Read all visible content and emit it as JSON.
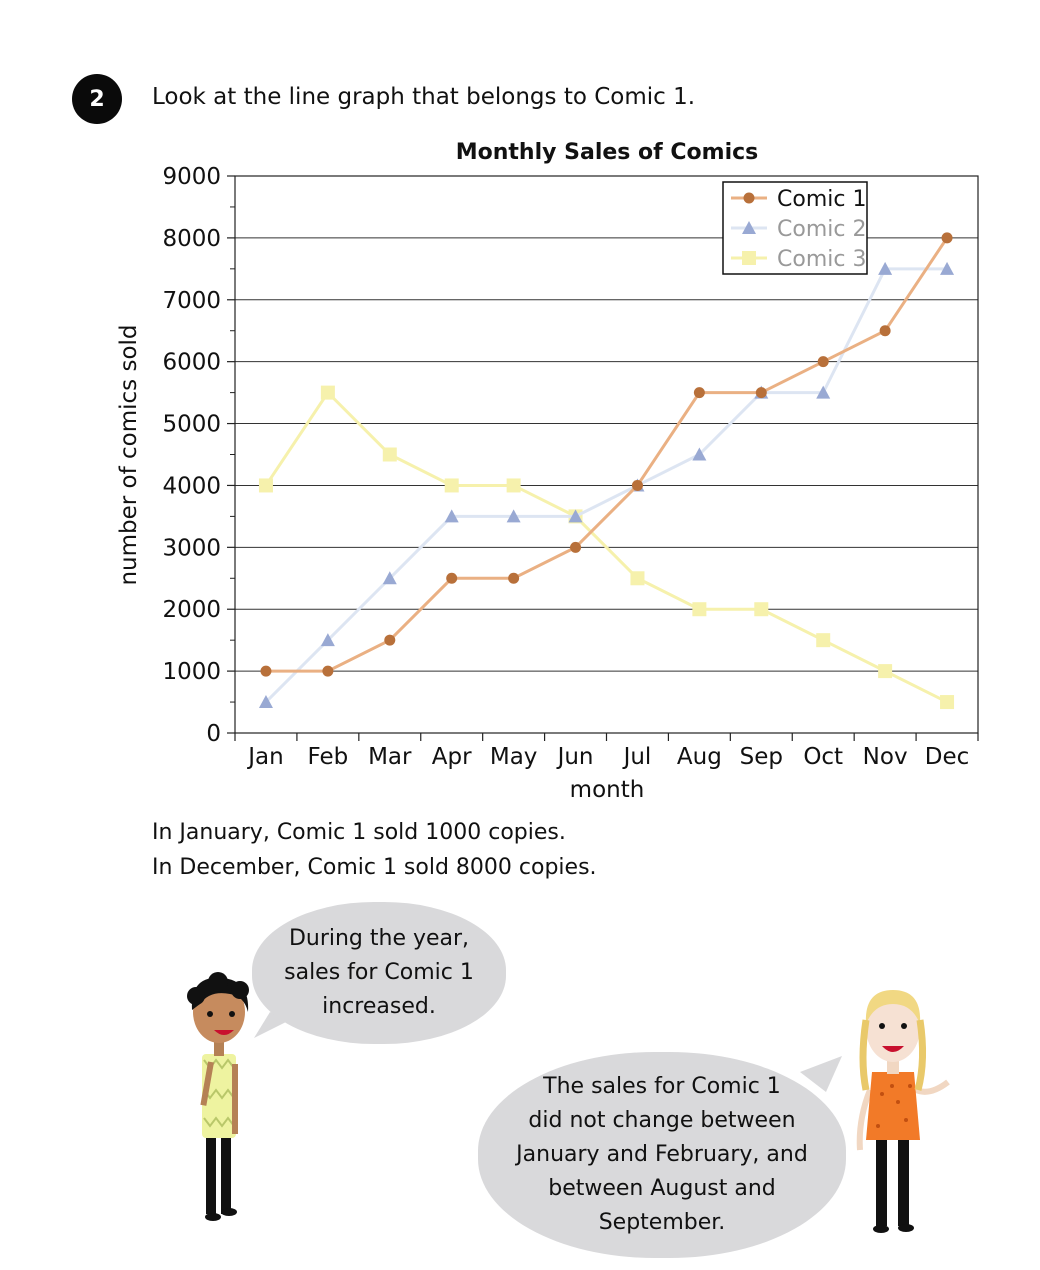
{
  "question": {
    "number": "2",
    "prompt": "Look at the line graph that belongs to Comic 1."
  },
  "chart_data": {
    "type": "line",
    "title": "Monthly Sales of Comics",
    "xlabel": "month",
    "ylabel": "number of comics sold",
    "ylim": [
      0,
      9000
    ],
    "yticks": [
      0,
      1000,
      2000,
      3000,
      4000,
      5000,
      6000,
      7000,
      8000,
      9000
    ],
    "categories": [
      "Jan",
      "Feb",
      "Mar",
      "Apr",
      "May",
      "Jun",
      "Jul",
      "Aug",
      "Sep",
      "Oct",
      "Nov",
      "Dec"
    ],
    "grid": true,
    "legend_position": "top-right",
    "series": [
      {
        "name": "Comic 1",
        "marker": "circle",
        "color": "#eab083",
        "marker_color": "#b8703a",
        "values": [
          1000,
          1000,
          1500,
          2500,
          2500,
          3000,
          4000,
          5500,
          5500,
          6000,
          6500,
          8000
        ]
      },
      {
        "name": "Comic 2",
        "marker": "triangle",
        "color": "#dde5f2",
        "marker_color": "#99a9d3",
        "values": [
          500,
          1500,
          2500,
          3500,
          3500,
          3500,
          4000,
          4500,
          5500,
          5500,
          7500,
          7500
        ]
      },
      {
        "name": "Comic 3",
        "marker": "square",
        "color": "#f6f1ac",
        "marker_color": "#f6f1ac",
        "values": [
          4000,
          5500,
          4500,
          4000,
          4000,
          3500,
          2500,
          2000,
          2000,
          1500,
          1000,
          500
        ]
      }
    ]
  },
  "statements": [
    "In January, Comic 1 sold 1000 copies.",
    "In December, Comic 1 sold 8000 copies."
  ],
  "speech": {
    "boy": [
      "During the year,",
      "sales for Comic 1",
      "increased."
    ],
    "girl": [
      "The sales for Comic 1",
      "did not change between",
      "January and February, and",
      "between August and",
      "September."
    ]
  }
}
